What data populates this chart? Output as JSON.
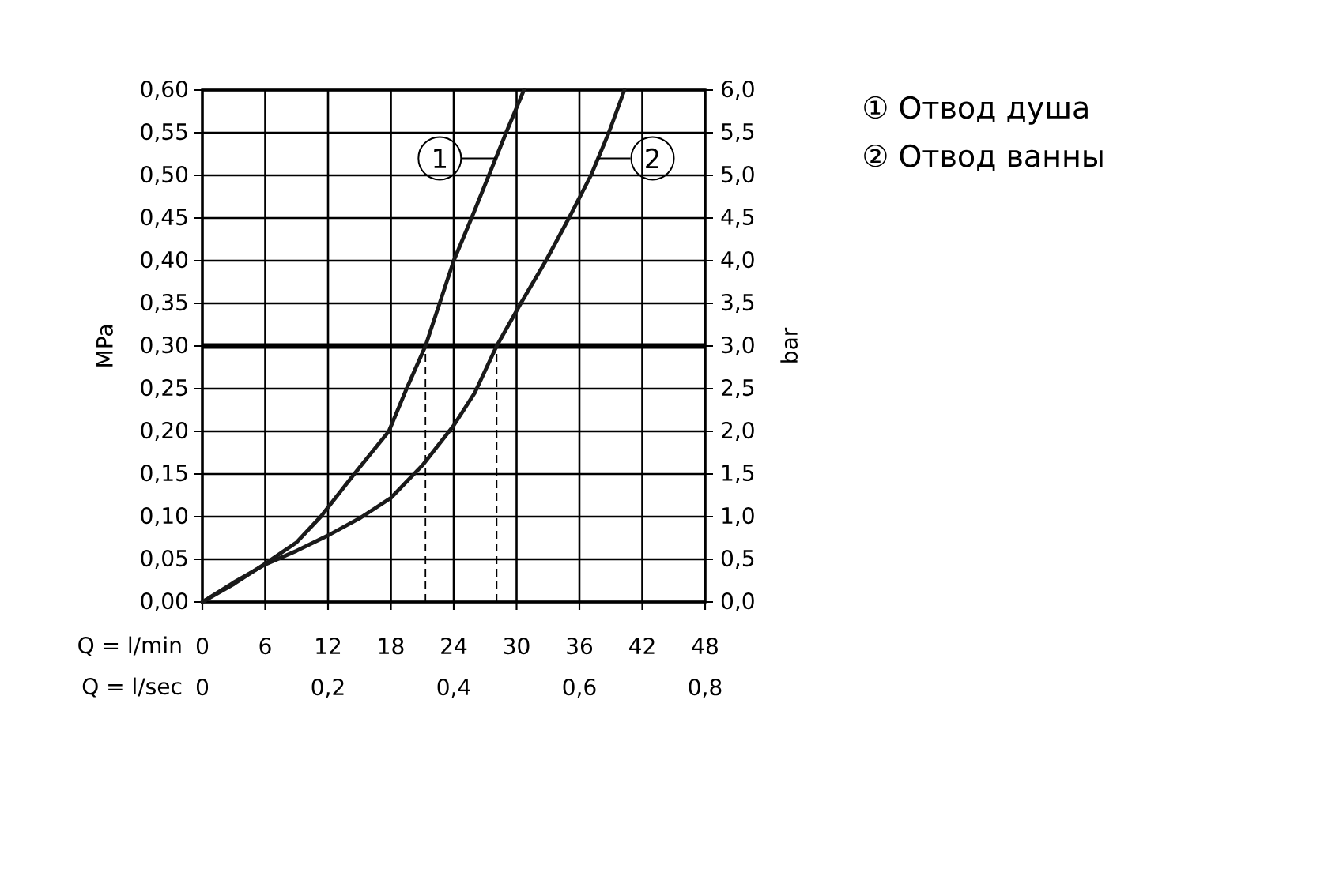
{
  "chart_data": {
    "type": "line",
    "xlabel": "Q = l/min",
    "x2label": "Q = l/sec",
    "ylabel": "MPa",
    "y2label": "bar",
    "xlim": [
      0,
      48
    ],
    "xticks": [
      0,
      6,
      12,
      18,
      24,
      30,
      36,
      42,
      48
    ],
    "x2lim": [
      0,
      0.8
    ],
    "x2ticks": [
      0,
      {
        "value": 0.2,
        "label": "0,2"
      },
      {
        "value": 0.4,
        "label": "0,4"
      },
      {
        "value": 0.6,
        "label": "0,6"
      },
      {
        "value": 0.8,
        "label": "0,8"
      }
    ],
    "ylim": [
      0,
      0.6
    ],
    "yticks": [
      {
        "value": 0,
        "label": "0,00"
      },
      {
        "value": 0.05,
        "label": "0,05"
      },
      {
        "value": 0.1,
        "label": "0,10"
      },
      {
        "value": 0.15,
        "label": "0,15"
      },
      {
        "value": 0.2,
        "label": "0,20"
      },
      {
        "value": 0.25,
        "label": "0,25"
      },
      {
        "value": 0.3,
        "label": "0,30"
      },
      {
        "value": 0.35,
        "label": "0,35"
      },
      {
        "value": 0.4,
        "label": "0,40"
      },
      {
        "value": 0.45,
        "label": "0,45"
      },
      {
        "value": 0.5,
        "label": "0,50"
      },
      {
        "value": 0.55,
        "label": "0,55"
      },
      {
        "value": 0.6,
        "label": "0,60"
      }
    ],
    "y2lim": [
      0,
      6
    ],
    "y2ticks": [
      {
        "value": 0,
        "label": "0,0"
      },
      {
        "value": 0.5,
        "label": "0,5"
      },
      {
        "value": 1,
        "label": "1,0"
      },
      {
        "value": 1.5,
        "label": "1,5"
      },
      {
        "value": 2,
        "label": "2,0"
      },
      {
        "value": 2.5,
        "label": "2,5"
      },
      {
        "value": 3,
        "label": "3,0"
      },
      {
        "value": 3.5,
        "label": "3,5"
      },
      {
        "value": 4,
        "label": "4,0"
      },
      {
        "value": 4.5,
        "label": "4,5"
      },
      {
        "value": 5,
        "label": "5,0"
      },
      {
        "value": 5.5,
        "label": "5,5"
      },
      {
        "value": 6,
        "label": "6,0"
      }
    ],
    "series": [
      {
        "name": "① Отвод душа",
        "color": "#1a1a1a",
        "x": [
          0,
          3,
          6,
          9,
          11.3,
          14.5,
          17.8,
          19.5,
          21.3,
          22.65,
          24,
          25.7,
          27.35,
          29,
          30.7
        ],
        "values": [
          0,
          0.021,
          0.045,
          0.07,
          0.1,
          0.15,
          0.2,
          0.25,
          0.3,
          0.35,
          0.4,
          0.45,
          0.5,
          0.55,
          0.6
        ]
      },
      {
        "name": "② Отвод ванны",
        "color": "#1a1a1a",
        "x": [
          0,
          3,
          6,
          9,
          12,
          15,
          18,
          21,
          24,
          26,
          28.1,
          30.4,
          32.8,
          35,
          37.1,
          38.8,
          40.3
        ],
        "values": [
          0,
          0.023,
          0.044,
          0.06,
          0.078,
          0.098,
          0.122,
          0.16,
          0.207,
          0.245,
          0.3,
          0.35,
          0.4,
          0.45,
          0.5,
          0.55,
          0.6
        ]
      }
    ],
    "ref_lines": [
      {
        "axis": "y",
        "value": 0.3,
        "color": "#000000"
      },
      {
        "axis": "x",
        "value": 21.3,
        "line_style": "dashed"
      },
      {
        "axis": "x",
        "value": 28.1,
        "line_style": "dashed"
      }
    ],
    "annotations": [
      {
        "text": "1",
        "x": 28.1,
        "y": 0.52
      },
      {
        "text": "2",
        "x": 37.7,
        "y": 0.52
      }
    ],
    "grid": true,
    "legend": "top right",
    "line_style": "solid",
    "marker": "none"
  }
}
